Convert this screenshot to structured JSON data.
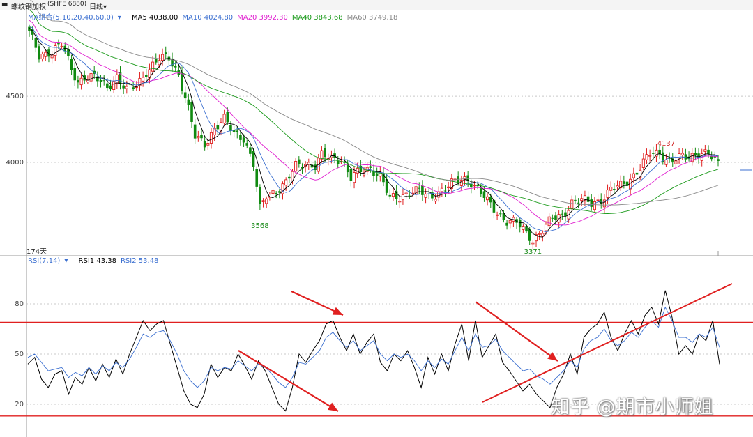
{
  "header": {
    "title": "螺纹钢加权",
    "code": "(SHFE 6880)",
    "period": "日线",
    "period_caret": "▾"
  },
  "ma_legend": {
    "group": "MA组合(5,10,20,40,60,0)",
    "caret": "▾",
    "items": [
      {
        "label": "MA5 4038.00",
        "color": "#000000"
      },
      {
        "label": "MA10 4024.80",
        "color": "#3b6fd0"
      },
      {
        "label": "MA20 3992.30",
        "color": "#e020d0"
      },
      {
        "label": "MA40 3843.68",
        "color": "#1a9a1a"
      },
      {
        "label": "MA60 3749.18",
        "color": "#888888"
      }
    ]
  },
  "days_label": "174天",
  "rsi_legend": {
    "group": "RSI(7,14)",
    "caret": "▾",
    "items": [
      {
        "label": "RSI1 43.38",
        "color": "#000000"
      },
      {
        "label": "RSI2 53.48",
        "color": "#3b6fd0"
      }
    ]
  },
  "watermark": "知乎 @期市小师姐",
  "chart_data": [
    {
      "type": "candlestick",
      "y_ticks": [
        4000,
        4500
      ],
      "ylim": [
        3330,
        5060
      ],
      "x_count": 174,
      "annotations": [
        {
          "text": "3568",
          "index": 71,
          "value": 3568,
          "color": "#1a8a1a"
        },
        {
          "text": "3371",
          "index": 155,
          "value": 3371,
          "color": "#1a8a1a"
        },
        {
          "text": "4137",
          "index": 196,
          "value": 4137,
          "color": "#d02020"
        }
      ],
      "colors": {
        "up": "#e02020",
        "down": "#108a10"
      },
      "close_anchors": [
        [
          0,
          4980
        ],
        [
          3,
          4800
        ],
        [
          7,
          4850
        ],
        [
          10,
          4890
        ],
        [
          13,
          4700
        ],
        [
          15,
          4610
        ],
        [
          17,
          4650
        ],
        [
          20,
          4640
        ],
        [
          24,
          4570
        ],
        [
          27,
          4650
        ],
        [
          30,
          4540
        ],
        [
          33,
          4580
        ],
        [
          36,
          4690
        ],
        [
          40,
          4780
        ],
        [
          43,
          4790
        ],
        [
          46,
          4670
        ],
        [
          49,
          4400
        ],
        [
          51,
          4190
        ],
        [
          54,
          4140
        ],
        [
          57,
          4260
        ],
        [
          60,
          4320
        ],
        [
          63,
          4220
        ],
        [
          66,
          4190
        ],
        [
          69,
          3980
        ],
        [
          71,
          3640
        ],
        [
          73,
          3750
        ],
        [
          76,
          3790
        ],
        [
          79,
          3840
        ],
        [
          82,
          3970
        ],
        [
          85,
          4000
        ],
        [
          88,
          3970
        ],
        [
          90,
          4050
        ],
        [
          93,
          4030
        ],
        [
          96,
          4030
        ],
        [
          99,
          3880
        ],
        [
          102,
          3930
        ],
        [
          105,
          3960
        ],
        [
          108,
          3900
        ],
        [
          111,
          3720
        ],
        [
          114,
          3740
        ],
        [
          117,
          3780
        ],
        [
          120,
          3780
        ],
        [
          123,
          3730
        ],
        [
          126,
          3780
        ],
        [
          129,
          3820
        ],
        [
          132,
          3860
        ],
        [
          135,
          3880
        ],
        [
          138,
          3800
        ],
        [
          141,
          3700
        ],
        [
          144,
          3620
        ],
        [
          147,
          3560
        ],
        [
          150,
          3540
        ],
        [
          153,
          3460
        ],
        [
          155,
          3420
        ],
        [
          158,
          3490
        ],
        [
          161,
          3570
        ],
        [
          164,
          3600
        ],
        [
          167,
          3700
        ],
        [
          170,
          3710
        ],
        [
          173,
          3690
        ],
        [
          176,
          3720
        ],
        [
          179,
          3790
        ],
        [
          182,
          3820
        ],
        [
          185,
          3880
        ],
        [
          188,
          3960
        ],
        [
          191,
          4060
        ],
        [
          194,
          4070
        ],
        [
          197,
          4010
        ],
        [
          200,
          4030
        ],
        [
          203,
          4040
        ],
        [
          206,
          4080
        ],
        [
          209,
          4060
        ],
        [
          212,
          3980
        ]
      ],
      "moving_averages": [
        {
          "name": "MA5",
          "color": "#000000",
          "last": 4038.0
        },
        {
          "name": "MA10",
          "color": "#3b6fd0",
          "last": 4024.8
        },
        {
          "name": "MA20",
          "color": "#e020d0",
          "last": 3992.3
        },
        {
          "name": "MA40",
          "color": "#1a9a1a",
          "last": 3843.68
        },
        {
          "name": "MA60",
          "color": "#888888",
          "last": 3749.18
        }
      ]
    },
    {
      "type": "line",
      "y_ticks": [
        20,
        50,
        80
      ],
      "ylim": [
        0,
        100
      ],
      "reference_lines": [
        69,
        13
      ],
      "series": [
        {
          "name": "RSI1",
          "color": "#000000",
          "values": [
            44,
            48,
            35,
            30,
            38,
            40,
            26,
            36,
            32,
            42,
            34,
            44,
            36,
            47,
            38,
            50,
            60,
            70,
            64,
            68,
            70,
            56,
            42,
            28,
            20,
            18,
            26,
            44,
            36,
            42,
            40,
            50,
            43,
            35,
            46,
            40,
            30,
            20,
            16,
            30,
            50,
            45,
            52,
            58,
            68,
            70,
            60,
            52,
            62,
            50,
            57,
            62,
            45,
            40,
            50,
            46,
            52,
            42,
            30,
            48,
            38,
            50,
            40,
            56,
            68,
            46,
            70,
            48,
            55,
            62,
            45,
            40,
            34,
            28,
            32,
            26,
            22,
            18,
            30,
            38,
            50,
            38,
            60,
            65,
            68,
            75,
            60,
            52,
            62,
            70,
            62,
            73,
            78,
            68,
            88,
            72,
            50,
            55,
            50,
            62,
            58,
            70,
            44
          ]
        },
        {
          "name": "RSI2",
          "color": "#3b6fd0",
          "values": [
            48,
            50,
            45,
            40,
            41,
            42,
            36,
            39,
            37,
            42,
            38,
            43,
            40,
            45,
            42,
            47,
            54,
            62,
            60,
            63,
            64,
            58,
            50,
            40,
            34,
            30,
            34,
            42,
            40,
            42,
            41,
            46,
            43,
            40,
            44,
            42,
            38,
            33,
            30,
            36,
            45,
            44,
            48,
            52,
            60,
            63,
            58,
            54,
            58,
            52,
            55,
            58,
            50,
            46,
            50,
            48,
            50,
            46,
            40,
            46,
            42,
            47,
            44,
            52,
            60,
            52,
            62,
            54,
            55,
            59,
            52,
            48,
            44,
            40,
            41,
            37,
            35,
            32,
            36,
            40,
            46,
            42,
            53,
            58,
            60,
            65,
            58,
            55,
            58,
            63,
            60,
            66,
            70,
            66,
            78,
            70,
            60,
            60,
            57,
            62,
            60,
            66,
            54
          ]
        }
      ],
      "trend_lines": [
        {
          "from": [
            0,
            0.9
          ],
          "to": [
            0.48,
            0.95
          ]
        },
        {
          "from": [
            0.3,
            0.4
          ],
          "to": [
            0.5,
            0.7
          ]
        }
      ]
    }
  ]
}
